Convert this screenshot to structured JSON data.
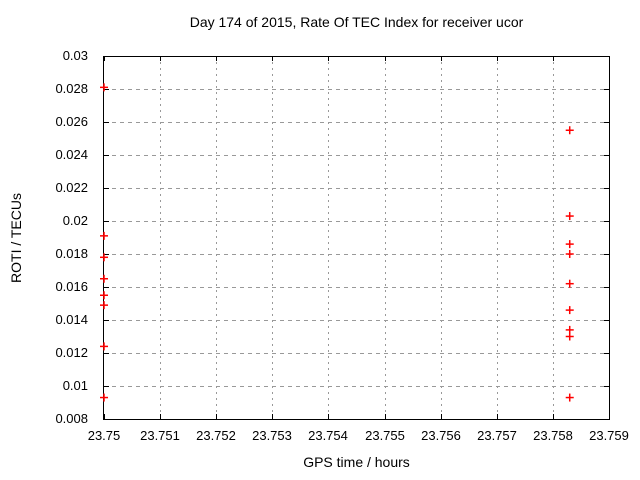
{
  "chart": {
    "title": "Day 174 of 2015, Rate Of TEC Index for receiver ucor",
    "xlabel": "GPS time / hours",
    "ylabel": "ROTI / TECUs"
  },
  "chart_data": {
    "type": "scatter",
    "title": "Day 174 of 2015, Rate Of TEC Index for receiver ucor",
    "xlabel": "GPS time / hours",
    "ylabel": "ROTI / TECUs",
    "xlim": [
      23.75,
      23.759
    ],
    "ylim": [
      0.008,
      0.03
    ],
    "xtick_labels": [
      "23.75",
      "23.751",
      "23.752",
      "23.753",
      "23.754",
      "23.755",
      "23.756",
      "23.757",
      "23.758",
      "23.759"
    ],
    "ytick_labels": [
      "0.008",
      "0.01",
      "0.012",
      "0.014",
      "0.016",
      "0.018",
      "0.02",
      "0.022",
      "0.024",
      "0.026",
      "0.028",
      "0.03"
    ],
    "grid": true,
    "legend": "none",
    "marker": "plus",
    "marker_color": "#ff0000",
    "grid_color": "#999999",
    "border_color": "#000000",
    "series": [
      {
        "name": "ROTI",
        "points": [
          [
            23.75,
            0.0281
          ],
          [
            23.75,
            0.0191
          ],
          [
            23.75,
            0.0178
          ],
          [
            23.75,
            0.0165
          ],
          [
            23.75,
            0.0155
          ],
          [
            23.75,
            0.0149
          ],
          [
            23.75,
            0.0124
          ],
          [
            23.75,
            0.0093
          ],
          [
            23.7583,
            0.0255
          ],
          [
            23.7583,
            0.0203
          ],
          [
            23.7583,
            0.0186
          ],
          [
            23.7583,
            0.018
          ],
          [
            23.7583,
            0.0162
          ],
          [
            23.7583,
            0.0146
          ],
          [
            23.7583,
            0.0134
          ],
          [
            23.7583,
            0.013
          ],
          [
            23.7583,
            0.0093
          ]
        ]
      }
    ]
  }
}
